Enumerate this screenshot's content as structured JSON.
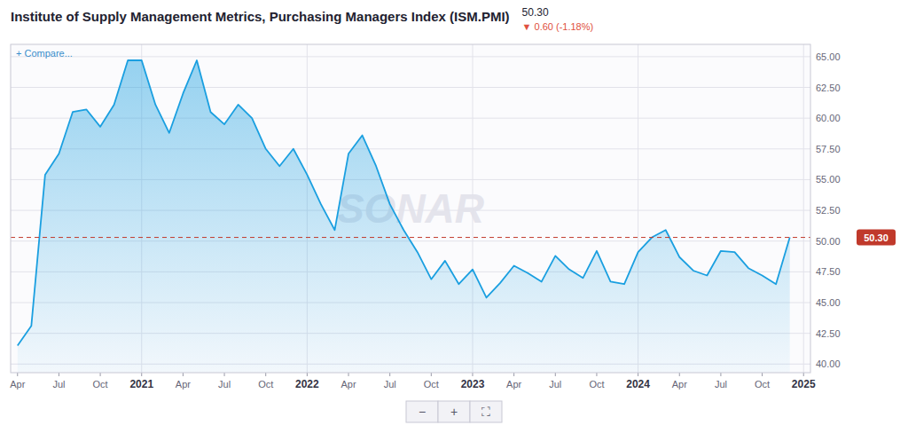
{
  "chart_data": {
    "type": "area",
    "title": "Institute of Supply Management Metrics, Purchasing Managers Index (ISM.PMI)",
    "categories": [
      "Apr",
      null,
      null,
      "Jul",
      null,
      null,
      "Oct",
      null,
      null,
      "2021",
      null,
      null,
      "Apr",
      null,
      null,
      "Jul",
      null,
      null,
      "Oct",
      null,
      null,
      "2022",
      null,
      null,
      "Apr",
      null,
      null,
      "Jul",
      null,
      null,
      "Oct",
      null,
      null,
      "2023",
      null,
      null,
      "Apr",
      null,
      null,
      "Jul",
      null,
      null,
      "Oct",
      null,
      null,
      "2024",
      null,
      null,
      "Apr",
      null,
      null,
      "Jul",
      null,
      null,
      "Oct",
      null,
      null,
      "2025"
    ],
    "values": [
      41.5,
      43.1,
      55.4,
      57.1,
      60.5,
      60.7,
      59.3,
      61.1,
      64.7,
      64.7,
      61.1,
      58.8,
      62.0,
      64.7,
      60.5,
      59.5,
      61.1,
      60.0,
      57.5,
      56.1,
      57.5,
      55.4,
      53.0,
      50.9,
      57.1,
      58.6,
      56.1,
      53.0,
      50.9,
      49.1,
      46.9,
      48.4,
      46.5,
      47.7,
      45.4,
      46.6,
      48.0,
      47.4,
      46.7,
      48.8,
      47.7,
      47.0,
      49.2,
      46.7,
      46.5,
      49.1,
      50.3,
      50.9,
      48.7,
      47.6,
      47.2,
      49.2,
      49.1,
      47.8,
      47.2,
      46.5,
      50.3,
      null
    ],
    "color": "#1a9fe0",
    "ylim": [
      39.3,
      66.0
    ],
    "yticks": [
      {
        "value": 40.0,
        "label": "40.00"
      },
      {
        "value": 42.5,
        "label": "42.50"
      },
      {
        "value": 45.0,
        "label": "45.00"
      },
      {
        "value": 47.5,
        "label": "47.50"
      },
      {
        "value": 50.0,
        "label": "50.00"
      },
      {
        "value": 52.5,
        "label": "52.50"
      },
      {
        "value": 55.0,
        "label": "55.00"
      },
      {
        "value": 57.5,
        "label": "57.50"
      },
      {
        "value": 60.0,
        "label": "60.00"
      },
      {
        "value": 62.5,
        "label": "62.50"
      },
      {
        "value": 65.0,
        "label": "65.00"
      }
    ],
    "grid": true,
    "current_value": {
      "value": 50.3,
      "label": "50.30",
      "color": "#c0392b"
    },
    "change": {
      "label": "▼ 0.60 (-1.18%)",
      "color": "#e05040"
    },
    "annotations": [
      "+ Compare...",
      "SONAR"
    ],
    "buttons": [
      "−",
      "+",
      "⛶"
    ]
  }
}
